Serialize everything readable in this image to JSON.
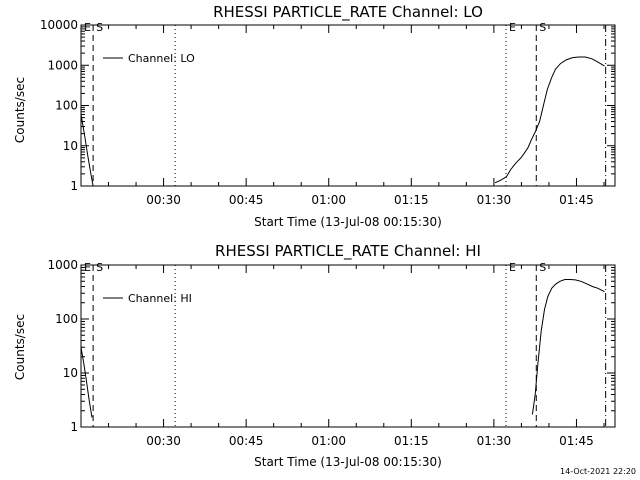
{
  "chart_data": [
    {
      "type": "line",
      "title": "RHESSI PARTICLE_RATE Channel: LO",
      "xlabel": "Start Time (13-Jul-08 00:15:30)",
      "ylabel": "Counts/sec",
      "yscale": "log",
      "ylim": [
        1,
        10000
      ],
      "xlim_minutes": [
        0,
        97
      ],
      "x_tick_labels": [
        "00:30",
        "00:45",
        "01:00",
        "01:15",
        "01:30",
        "01:45"
      ],
      "x_tick_minutes": [
        15,
        30,
        45,
        60,
        75,
        90
      ],
      "y_tick_labels": [
        "10000",
        "1000",
        "100",
        "10",
        "1"
      ],
      "y_tick_values": [
        10000,
        1000,
        100,
        10,
        1
      ],
      "legend": "Channel: LO",
      "marker_lines": [
        {
          "label": "E",
          "x_minutes": 0,
          "style": "dotted"
        },
        {
          "label": "S",
          "x_minutes": 2.2,
          "style": "dashed"
        },
        {
          "label": "",
          "x_minutes": 17.1,
          "style": "dotted"
        },
        {
          "label": "E",
          "x_minutes": 77.2,
          "style": "dotted"
        },
        {
          "label": "S",
          "x_minutes": 82.7,
          "style": "dashed"
        },
        {
          "label": "",
          "x_minutes": 95.3,
          "style": "dashdot"
        }
      ],
      "series": [
        {
          "name": "Channel: LO",
          "segments": [
            {
              "x": [
                0.0,
                0.6,
                1.2,
                1.8,
                2.2
              ],
              "y": [
                60,
                20,
                6,
                2,
                1
              ]
            },
            {
              "x": [
                75.2,
                76.3,
                77.3,
                78.0,
                78.6,
                79.2,
                79.9,
                80.5,
                81.2,
                81.8,
                82.5,
                83.3,
                84.0,
                84.7,
                85.5,
                86.2,
                87.1,
                88.1,
                89.3,
                90.4,
                91.6,
                92.8,
                93.9,
                95.1
              ],
              "y": [
                1.2,
                1.4,
                1.7,
                2.5,
                3.2,
                4,
                5,
                6.5,
                9,
                14,
                22,
                40,
                100,
                250,
                500,
                800,
                1100,
                1350,
                1550,
                1600,
                1600,
                1450,
                1200,
                950
              ]
            }
          ]
        }
      ]
    },
    {
      "type": "line",
      "title": "RHESSI PARTICLE_RATE Channel: HI",
      "xlabel": "Start Time (13-Jul-08 00:15:30)",
      "ylabel": "Counts/sec",
      "yscale": "log",
      "ylim": [
        1,
        1000
      ],
      "xlim_minutes": [
        0,
        97
      ],
      "x_tick_labels": [
        "00:30",
        "00:45",
        "01:00",
        "01:15",
        "01:30",
        "01:45"
      ],
      "x_tick_minutes": [
        15,
        30,
        45,
        60,
        75,
        90
      ],
      "y_tick_labels": [
        "1000",
        "100",
        "10",
        "1"
      ],
      "y_tick_values": [
        1000,
        100,
        10,
        1
      ],
      "legend": "Channel: HI",
      "marker_lines": [
        {
          "label": "E",
          "x_minutes": 0,
          "style": "dotted"
        },
        {
          "label": "S",
          "x_minutes": 2.2,
          "style": "dashed"
        },
        {
          "label": "",
          "x_minutes": 17.1,
          "style": "dotted"
        },
        {
          "label": "E",
          "x_minutes": 77.2,
          "style": "dotted"
        },
        {
          "label": "S",
          "x_minutes": 82.7,
          "style": "dashed"
        },
        {
          "label": "",
          "x_minutes": 95.3,
          "style": "dashdot"
        }
      ],
      "series": [
        {
          "name": "Channel: HI",
          "segments": [
            {
              "x": [
                0.0,
                0.5,
                1.0,
                1.5,
                2.0
              ],
              "y": [
                30,
                15,
                7,
                3,
                1.5
              ]
            },
            {
              "x": [
                82.0,
                82.5,
                83.0,
                83.6,
                84.2,
                84.8,
                85.5,
                86.2,
                87.0,
                87.9,
                88.8,
                89.8,
                90.8,
                91.8,
                92.9,
                93.9,
                95.1
              ],
              "y": [
                1.7,
                4,
                15,
                60,
                150,
                260,
                370,
                440,
                500,
                540,
                540,
                530,
                500,
                450,
                400,
                370,
                320
              ]
            }
          ]
        }
      ]
    }
  ],
  "footer": {
    "timestamp": "14-Oct-2021 22:20"
  }
}
